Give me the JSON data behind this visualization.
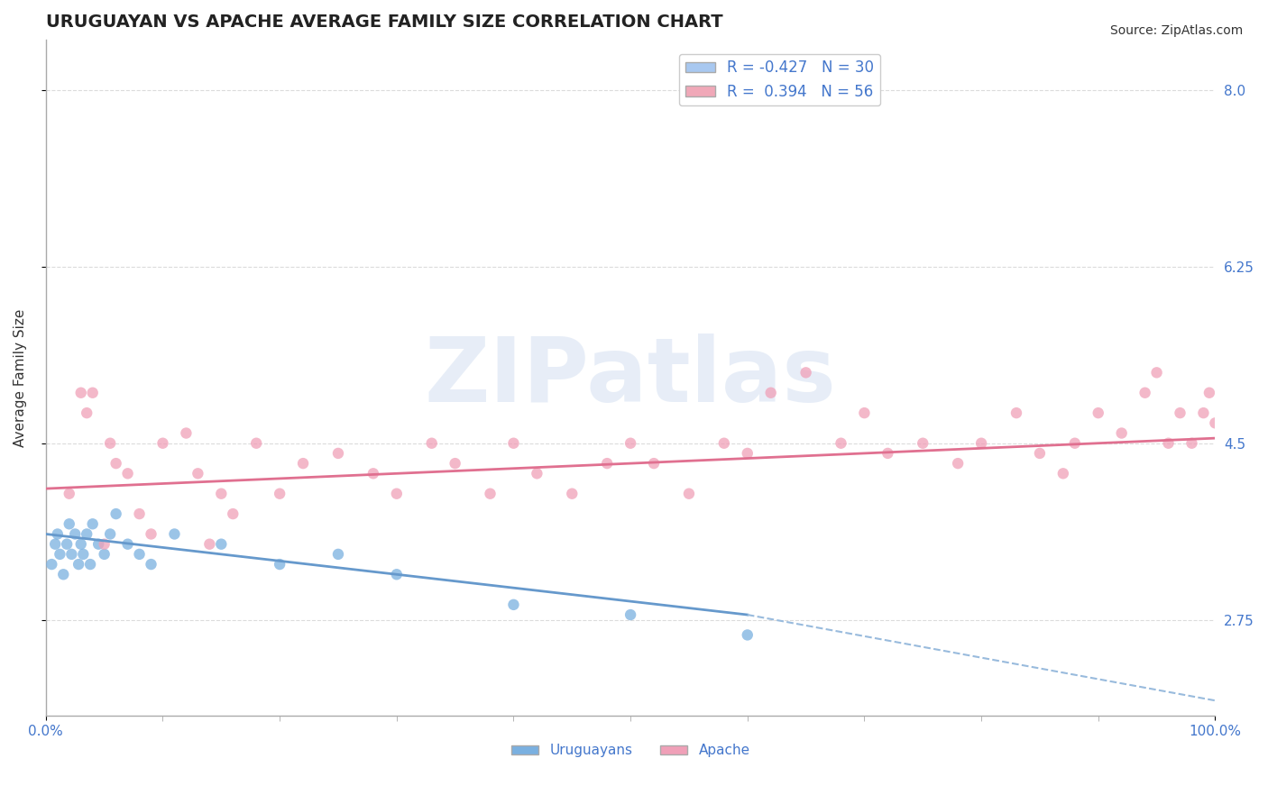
{
  "title": "URUGUAYAN VS APACHE AVERAGE FAMILY SIZE CORRELATION CHART",
  "source_text": "Source: ZipAtlas.com",
  "xlabel": "",
  "ylabel": "Average Family Size",
  "xlim": [
    0.0,
    100.0
  ],
  "ylim": [
    1.8,
    8.5
  ],
  "yticks": [
    2.75,
    4.5,
    6.25,
    8.0
  ],
  "xtick_labels": [
    "0.0%",
    "100.0%"
  ],
  "legend_items": [
    {
      "label": "R = -0.427   N = 30",
      "color": "#a8c8f0"
    },
    {
      "label": "R =  0.394   N = 56",
      "color": "#f0a8b8"
    }
  ],
  "bottom_legend_items": [
    {
      "label": "Uruguayans",
      "color": "#7ab0e0"
    },
    {
      "label": "Apache",
      "color": "#f0a0b8"
    }
  ],
  "uruguayan_dots": {
    "color": "#7ab0e0",
    "alpha": 0.75,
    "size": 80,
    "x": [
      0.5,
      0.8,
      1.0,
      1.2,
      1.5,
      1.8,
      2.0,
      2.2,
      2.5,
      2.8,
      3.0,
      3.2,
      3.5,
      3.8,
      4.0,
      4.5,
      5.0,
      5.5,
      6.0,
      7.0,
      8.0,
      9.0,
      11.0,
      15.0,
      20.0,
      25.0,
      30.0,
      40.0,
      50.0,
      60.0
    ],
    "y": [
      3.3,
      3.5,
      3.6,
      3.4,
      3.2,
      3.5,
      3.7,
      3.4,
      3.6,
      3.3,
      3.5,
      3.4,
      3.6,
      3.3,
      3.7,
      3.5,
      3.4,
      3.6,
      3.8,
      3.5,
      3.4,
      3.3,
      3.6,
      3.5,
      3.3,
      3.4,
      3.2,
      2.9,
      2.8,
      2.6
    ]
  },
  "apache_dots": {
    "color": "#f0a0b8",
    "alpha": 0.75,
    "size": 80,
    "x": [
      2.0,
      3.0,
      3.5,
      4.0,
      5.0,
      5.5,
      6.0,
      7.0,
      8.0,
      9.0,
      10.0,
      12.0,
      13.0,
      14.0,
      15.0,
      16.0,
      18.0,
      20.0,
      22.0,
      25.0,
      28.0,
      30.0,
      33.0,
      35.0,
      38.0,
      40.0,
      42.0,
      45.0,
      48.0,
      50.0,
      52.0,
      55.0,
      58.0,
      60.0,
      62.0,
      65.0,
      68.0,
      70.0,
      72.0,
      75.0,
      78.0,
      80.0,
      83.0,
      85.0,
      87.0,
      88.0,
      90.0,
      92.0,
      94.0,
      95.0,
      96.0,
      97.0,
      98.0,
      99.0,
      99.5,
      100.0
    ],
    "y": [
      4.0,
      5.0,
      4.8,
      5.0,
      3.5,
      4.5,
      4.3,
      4.2,
      3.8,
      3.6,
      4.5,
      4.6,
      4.2,
      3.5,
      4.0,
      3.8,
      4.5,
      4.0,
      4.3,
      4.4,
      4.2,
      4.0,
      4.5,
      4.3,
      4.0,
      4.5,
      4.2,
      4.0,
      4.3,
      4.5,
      4.3,
      4.0,
      4.5,
      4.4,
      5.0,
      5.2,
      4.5,
      4.8,
      4.4,
      4.5,
      4.3,
      4.5,
      4.8,
      4.4,
      4.2,
      4.5,
      4.8,
      4.6,
      5.0,
      5.2,
      4.5,
      4.8,
      4.5,
      4.8,
      5.0,
      4.7
    ]
  },
  "uruguayan_line": {
    "color": "#6699cc",
    "lw": 2.0,
    "x_start": 0.0,
    "x_end": 60.0,
    "y_start": 3.6,
    "y_end": 2.8
  },
  "uruguayan_dashed_line": {
    "color": "#99bbdd",
    "lw": 1.5,
    "linestyle": "--",
    "x_start": 60.0,
    "x_end": 100.0,
    "y_start": 2.8,
    "y_end": 1.95
  },
  "apache_line": {
    "color": "#e07090",
    "lw": 2.0,
    "x_start": 0.0,
    "x_end": 100.0,
    "y_start": 4.05,
    "y_end": 4.55
  },
  "grid_color": "#cccccc",
  "grid_style": "--",
  "grid_alpha": 0.7,
  "background_color": "#ffffff",
  "title_fontsize": 14,
  "axis_label_fontsize": 11,
  "tick_fontsize": 11,
  "ylabel_color": "#333333",
  "yaxis_right_color": "#4477cc",
  "watermark_text": "ZIPatlas",
  "watermark_color": "#d0ddf0",
  "watermark_fontsize": 72,
  "source_color": "#333333",
  "source_fontsize": 10
}
